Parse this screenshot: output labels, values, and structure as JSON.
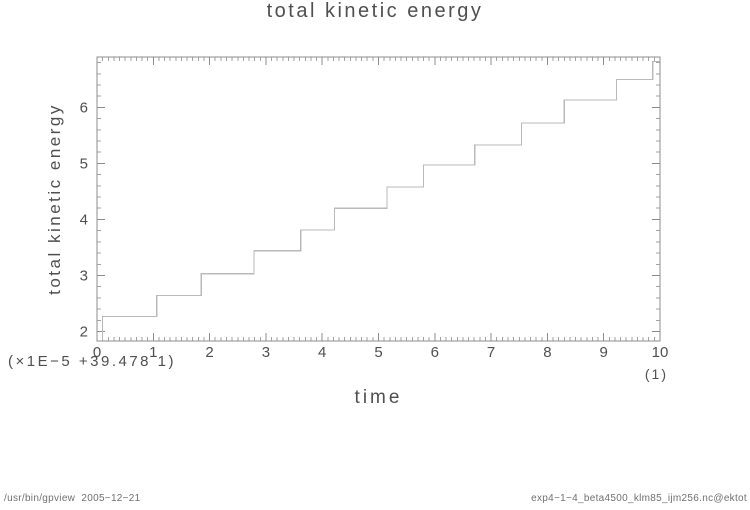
{
  "footer": {
    "left": "/usr/bin/gpview  2005−12−21",
    "right": "exp4−1−4_beta4500_klm85_ijm256.nc@ektot"
  },
  "chart_data": {
    "type": "line",
    "style": "step-staircase",
    "title": "total kinetic energy",
    "xlabel": "time",
    "ylabel": "total kinetic energy",
    "x_scale_note": "(×1E−5 +39.478 1)",
    "x_unit_note": "(1)",
    "xlim": [
      0,
      10
    ],
    "ylim": [
      1.83,
      6.9
    ],
    "xticks": [
      0,
      1,
      2,
      3,
      4,
      5,
      6,
      7,
      8,
      9,
      10
    ],
    "yticks": [
      2,
      3,
      4,
      5,
      6
    ],
    "x_minor_step": 0.1,
    "y_minor_step": 0.2,
    "grid": false,
    "legend": "none",
    "series": [
      {
        "name": "total kinetic energy",
        "points": [
          [
            0.1,
            1.85
          ],
          [
            0.1,
            2.27
          ],
          [
            1.06,
            2.27
          ],
          [
            1.06,
            2.64
          ],
          [
            1.85,
            2.64
          ],
          [
            1.85,
            3.03
          ],
          [
            2.79,
            3.03
          ],
          [
            2.79,
            3.44
          ],
          [
            3.62,
            3.44
          ],
          [
            3.62,
            3.81
          ],
          [
            4.22,
            3.81
          ],
          [
            4.22,
            4.2
          ],
          [
            5.15,
            4.2
          ],
          [
            5.15,
            4.58
          ],
          [
            5.8,
            4.58
          ],
          [
            5.8,
            4.97
          ],
          [
            6.71,
            4.97
          ],
          [
            6.71,
            5.33
          ],
          [
            7.54,
            5.33
          ],
          [
            7.54,
            5.72
          ],
          [
            8.3,
            5.72
          ],
          [
            8.3,
            6.13
          ],
          [
            9.23,
            6.13
          ],
          [
            9.23,
            6.5
          ],
          [
            9.87,
            6.5
          ],
          [
            9.87,
            6.82
          ],
          [
            10.0,
            6.82
          ]
        ]
      }
    ],
    "colors": {
      "line": "#b9b9b9",
      "frame": "#8c8c8c",
      "major_tick": "#8c8c8c",
      "minor_tick": "#a3a3a3",
      "text": "#4f4f4f",
      "footer_text": "#707070"
    }
  }
}
